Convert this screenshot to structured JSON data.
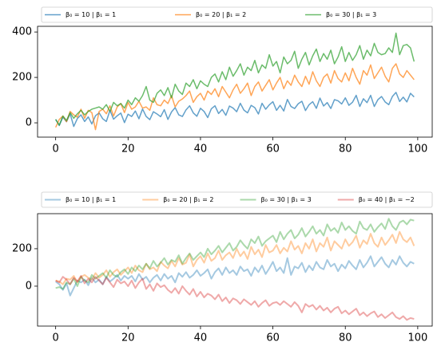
{
  "chart_data": [
    {
      "type": "line",
      "legend": "above",
      "alpha": 0.7,
      "line_width": 1.5,
      "x": [
        0,
        1,
        2,
        3,
        4,
        5,
        6,
        7,
        8,
        9,
        10,
        11,
        12,
        13,
        14,
        15,
        16,
        17,
        18,
        19,
        20,
        21,
        22,
        23,
        24,
        25,
        26,
        27,
        28,
        29,
        30,
        31,
        32,
        33,
        34,
        35,
        36,
        37,
        38,
        39,
        40,
        41,
        42,
        43,
        44,
        45,
        46,
        47,
        48,
        49,
        50,
        51,
        52,
        53,
        54,
        55,
        56,
        57,
        58,
        59,
        60,
        61,
        62,
        63,
        64,
        65,
        66,
        67,
        68,
        69,
        70,
        71,
        72,
        73,
        74,
        75,
        76,
        77,
        78,
        79,
        80,
        81,
        82,
        83,
        84,
        85,
        86,
        87,
        88,
        89,
        90,
        91,
        92,
        93,
        94,
        95,
        96,
        97,
        98,
        99
      ],
      "xlim": [
        -5,
        104
      ],
      "xticks": [
        0,
        20,
        40,
        60,
        80,
        100
      ],
      "ylim": [
        -63,
        425
      ],
      "yticks": [
        0,
        200,
        400
      ],
      "series": [
        {
          "name": "β₀ = 10 | β₁ = 1",
          "color": "#1f77b4",
          "values": [
            15,
            -12,
            25,
            5,
            40,
            -16,
            19,
            35,
            6,
            26,
            -5,
            31,
            44,
            18,
            6,
            55,
            16,
            31,
            43,
            1,
            38,
            28,
            52,
            18,
            61,
            28,
            14,
            49,
            39,
            27,
            58,
            15,
            48,
            67,
            35,
            28,
            57,
            75,
            44,
            29,
            64,
            50,
            23,
            62,
            75,
            41,
            59,
            33,
            74,
            65,
            49,
            86,
            56,
            44,
            77,
            67,
            39,
            86,
            60,
            79,
            93,
            55,
            77,
            52,
            103,
            72,
            63,
            84,
            95,
            54,
            80,
            93,
            64,
            109,
            74,
            89,
            63,
            102,
            97,
            83,
            110,
            77,
            91,
            121,
            72,
            106,
            89,
            121,
            72,
            102,
            116,
            92,
            80,
            116,
            134,
            94,
            113,
            92,
            130,
            114
          ]
        },
        {
          "name": "β₀ = 20 | β₁ = 2",
          "color": "#ff7f0e",
          "values": [
            -20,
            15,
            30,
            5,
            50,
            35,
            25,
            60,
            20,
            55,
            45,
            -30,
            50,
            60,
            40,
            75,
            30,
            70,
            85,
            45,
            90,
            60,
            70,
            95,
            65,
            70,
            55,
            110,
            80,
            75,
            100,
            85,
            120,
            70,
            95,
            105,
            120,
            140,
            90,
            115,
            130,
            100,
            140,
            125,
            150,
            115,
            160,
            135,
            110,
            145,
            170,
            130,
            150,
            175,
            120,
            160,
            180,
            140,
            165,
            190,
            145,
            175,
            200,
            150,
            185,
            165,
            210,
            180,
            160,
            205,
            170,
            225,
            185,
            160,
            200,
            215,
            175,
            230,
            195,
            180,
            220,
            185,
            240,
            200,
            170,
            230,
            210,
            255,
            195,
            220,
            245,
            205,
            180,
            240,
            260,
            215,
            200,
            230,
            210,
            190
          ]
        },
        {
          "name": "β₀ = 30 | β₁ = 3",
          "color": "#2ca02c",
          "values": [
            15,
            -10,
            30,
            10,
            45,
            20,
            40,
            55,
            35,
            50,
            60,
            65,
            70,
            60,
            80,
            50,
            90,
            75,
            85,
            65,
            100,
            80,
            110,
            95,
            120,
            160,
            100,
            90,
            130,
            145,
            120,
            155,
            110,
            170,
            140,
            125,
            175,
            160,
            190,
            150,
            185,
            170,
            160,
            200,
            215,
            180,
            225,
            190,
            245,
            205,
            230,
            260,
            210,
            245,
            230,
            275,
            220,
            255,
            240,
            300,
            250,
            270,
            220,
            290,
            260,
            275,
            315,
            240,
            280,
            310,
            255,
            295,
            325,
            270,
            305,
            280,
            320,
            260,
            290,
            335,
            270,
            310,
            275,
            300,
            340,
            280,
            320,
            295,
            350,
            310,
            300,
            305,
            330,
            310,
            395,
            300,
            340,
            345,
            330,
            270
          ]
        }
      ]
    },
    {
      "type": "line",
      "legend": "above",
      "alpha": 0.4,
      "line_width": 2,
      "x": [
        0,
        1,
        2,
        3,
        4,
        5,
        6,
        7,
        8,
        9,
        10,
        11,
        12,
        13,
        14,
        15,
        16,
        17,
        18,
        19,
        20,
        21,
        22,
        23,
        24,
        25,
        26,
        27,
        28,
        29,
        30,
        31,
        32,
        33,
        34,
        35,
        36,
        37,
        38,
        39,
        40,
        41,
        42,
        43,
        44,
        45,
        46,
        47,
        48,
        49,
        50,
        51,
        52,
        53,
        54,
        55,
        56,
        57,
        58,
        59,
        60,
        61,
        62,
        63,
        64,
        65,
        66,
        67,
        68,
        69,
        70,
        71,
        72,
        73,
        74,
        75,
        76,
        77,
        78,
        79,
        80,
        81,
        82,
        83,
        84,
        85,
        86,
        87,
        88,
        89,
        90,
        91,
        92,
        93,
        94,
        95,
        96,
        97,
        98,
        99
      ],
      "xlim": [
        -5,
        104
      ],
      "xticks": [
        0,
        20,
        40,
        60,
        80,
        100
      ],
      "ylim": [
        -213,
        387
      ],
      "yticks": [
        0,
        200
      ],
      "series": [
        {
          "name": "β₀ = 10 | β₁ = 1",
          "color": "#1f77b4",
          "values": [
            25,
            10,
            -20,
            15,
            -50,
            -10,
            30,
            20,
            35,
            5,
            45,
            20,
            35,
            10,
            50,
            25,
            40,
            60,
            30,
            55,
            40,
            55,
            25,
            65,
            35,
            50,
            20,
            45,
            60,
            30,
            65,
            40,
            55,
            20,
            70,
            50,
            75,
            45,
            60,
            85,
            55,
            70,
            90,
            40,
            75,
            95,
            60,
            100,
            70,
            85,
            60,
            105,
            80,
            90,
            55,
            100,
            75,
            110,
            65,
            95,
            130,
            80,
            100,
            70,
            150,
            60,
            105,
            95,
            125,
            75,
            110,
            85,
            130,
            100,
            90,
            140,
            105,
            120,
            80,
            115,
            95,
            135,
            110,
            90,
            140,
            100,
            125,
            160,
            105,
            130,
            155,
            120,
            100,
            140,
            115,
            160,
            125,
            105,
            130,
            120
          ]
        },
        {
          "name": "β₀ = 20 | β₁ = 2",
          "color": "#ff7f0e",
          "values": [
            30,
            25,
            10,
            40,
            35,
            55,
            20,
            50,
            60,
            45,
            35,
            70,
            45,
            60,
            85,
            50,
            75,
            90,
            60,
            80,
            100,
            70,
            110,
            85,
            75,
            120,
            90,
            100,
            80,
            130,
            110,
            95,
            135,
            105,
            150,
            115,
            125,
            170,
            105,
            140,
            160,
            125,
            175,
            135,
            150,
            190,
            140,
            165,
            180,
            150,
            200,
            160,
            185,
            145,
            210,
            170,
            195,
            155,
            220,
            180,
            190,
            220,
            175,
            205,
            185,
            240,
            195,
            215,
            175,
            230,
            200,
            250,
            185,
            230,
            210,
            260,
            190,
            240,
            220,
            200,
            250,
            215,
            235,
            270,
            205,
            245,
            225,
            280,
            230,
            210,
            260,
            220,
            245,
            275,
            230,
            290,
            250,
            235,
            260,
            215
          ]
        },
        {
          "name": "β₀ = 30 | β₁ = 3",
          "color": "#2ca02c",
          "values": [
            -10,
            -5,
            -15,
            20,
            10,
            40,
            0,
            50,
            30,
            20,
            60,
            40,
            55,
            70,
            45,
            85,
            60,
            50,
            75,
            90,
            65,
            100,
            80,
            110,
            90,
            120,
            95,
            135,
            105,
            125,
            150,
            115,
            140,
            130,
            165,
            120,
            150,
            175,
            140,
            160,
            180,
            155,
            200,
            170,
            190,
            215,
            180,
            205,
            230,
            190,
            210,
            245,
            220,
            200,
            250,
            230,
            265,
            215,
            240,
            255,
            270,
            235,
            290,
            250,
            280,
            300,
            255,
            275,
            310,
            265,
            290,
            320,
            280,
            300,
            270,
            330,
            295,
            310,
            285,
            340,
            300,
            320,
            295,
            280,
            345,
            310,
            300,
            330,
            290,
            315,
            335,
            305,
            360,
            320,
            300,
            340,
            350,
            330,
            355,
            350
          ]
        },
        {
          "name": "β₀ = 40 | β₁ = −2",
          "color": "#d62728",
          "values": [
            30,
            20,
            50,
            35,
            10,
            45,
            25,
            55,
            15,
            40,
            20,
            50,
            30,
            10,
            45,
            20,
            -5,
            35,
            15,
            25,
            0,
            30,
            -10,
            20,
            40,
            -15,
            10,
            -25,
            15,
            -5,
            5,
            -20,
            -35,
            -10,
            -40,
            0,
            -25,
            -45,
            -15,
            -55,
            -30,
            -60,
            -40,
            -50,
            -70,
            -45,
            -80,
            -60,
            -90,
            -65,
            -75,
            -95,
            -70,
            -85,
            -100,
            -80,
            -110,
            -90,
            -75,
            -105,
            -90,
            -85,
            -100,
            -80,
            -95,
            -110,
            -85,
            -105,
            -140,
            -95,
            -110,
            -100,
            -125,
            -105,
            -130,
            -115,
            -140,
            -120,
            -110,
            -145,
            -130,
            -150,
            -135,
            -120,
            -155,
            -140,
            -160,
            -145,
            -135,
            -165,
            -150,
            -170,
            -155,
            -140,
            -165,
            -175,
            -160,
            -180,
            -170,
            -175
          ]
        }
      ]
    }
  ]
}
